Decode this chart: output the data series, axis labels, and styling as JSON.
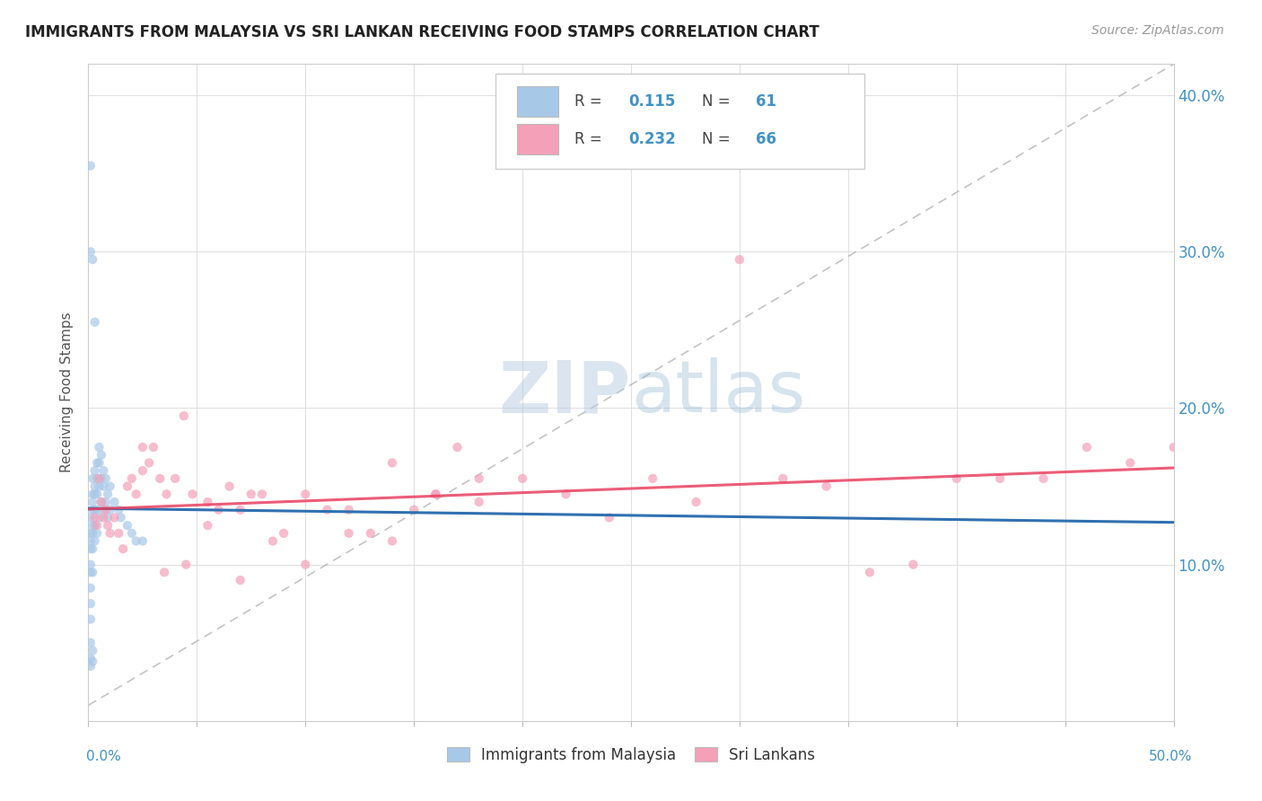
{
  "title": "IMMIGRANTS FROM MALAYSIA VS SRI LANKAN RECEIVING FOOD STAMPS CORRELATION CHART",
  "source": "Source: ZipAtlas.com",
  "ylabel": "Receiving Food Stamps",
  "xlim": [
    0.0,
    0.5
  ],
  "ylim": [
    0.0,
    0.42
  ],
  "ytick_vals": [
    0.1,
    0.2,
    0.3,
    0.4
  ],
  "ytick_labels": [
    "10.0%",
    "20.0%",
    "30.0%",
    "40.0%"
  ],
  "blue_color": "#a8c8e8",
  "pink_color": "#f4a0b8",
  "blue_line_color": "#3070b0",
  "pink_line_color": "#e8406080",
  "grid_color": "#e0e0e0",
  "watermark_color": "#c8d8e8",
  "malaysia_x": [
    0.001,
    0.001,
    0.001,
    0.001,
    0.001,
    0.001,
    0.001,
    0.001,
    0.001,
    0.001,
    0.002,
    0.002,
    0.002,
    0.002,
    0.002,
    0.002,
    0.002,
    0.002,
    0.003,
    0.003,
    0.003,
    0.003,
    0.003,
    0.003,
    0.004,
    0.004,
    0.004,
    0.004,
    0.004,
    0.005,
    0.005,
    0.005,
    0.005,
    0.006,
    0.006,
    0.006,
    0.007,
    0.007,
    0.007,
    0.008,
    0.008,
    0.009,
    0.009,
    0.01,
    0.01,
    0.012,
    0.014,
    0.015,
    0.018,
    0.02,
    0.022,
    0.025,
    0.001,
    0.002,
    0.003,
    0.001,
    0.002,
    0.001,
    0.002,
    0.001
  ],
  "malaysia_y": [
    0.355,
    0.13,
    0.12,
    0.115,
    0.11,
    0.1,
    0.095,
    0.085,
    0.075,
    0.065,
    0.155,
    0.145,
    0.14,
    0.135,
    0.125,
    0.12,
    0.11,
    0.095,
    0.16,
    0.15,
    0.145,
    0.135,
    0.125,
    0.115,
    0.165,
    0.155,
    0.145,
    0.135,
    0.12,
    0.175,
    0.165,
    0.15,
    0.13,
    0.17,
    0.155,
    0.14,
    0.16,
    0.15,
    0.135,
    0.155,
    0.14,
    0.145,
    0.13,
    0.15,
    0.135,
    0.14,
    0.135,
    0.13,
    0.125,
    0.12,
    0.115,
    0.115,
    0.3,
    0.295,
    0.255,
    0.05,
    0.045,
    0.04,
    0.038,
    0.035
  ],
  "srilanka_x": [
    0.003,
    0.004,
    0.005,
    0.006,
    0.007,
    0.008,
    0.009,
    0.01,
    0.012,
    0.014,
    0.016,
    0.018,
    0.02,
    0.022,
    0.025,
    0.028,
    0.03,
    0.033,
    0.036,
    0.04,
    0.044,
    0.048,
    0.055,
    0.06,
    0.065,
    0.07,
    0.075,
    0.08,
    0.09,
    0.1,
    0.11,
    0.12,
    0.13,
    0.14,
    0.15,
    0.16,
    0.17,
    0.18,
    0.2,
    0.22,
    0.24,
    0.26,
    0.28,
    0.3,
    0.32,
    0.34,
    0.36,
    0.38,
    0.4,
    0.42,
    0.44,
    0.46,
    0.48,
    0.5,
    0.025,
    0.035,
    0.045,
    0.055,
    0.07,
    0.085,
    0.1,
    0.12,
    0.14,
    0.16,
    0.18
  ],
  "srilanka_y": [
    0.13,
    0.125,
    0.155,
    0.14,
    0.13,
    0.135,
    0.125,
    0.12,
    0.13,
    0.12,
    0.11,
    0.15,
    0.155,
    0.145,
    0.175,
    0.165,
    0.175,
    0.155,
    0.145,
    0.155,
    0.195,
    0.145,
    0.14,
    0.135,
    0.15,
    0.135,
    0.145,
    0.145,
    0.12,
    0.145,
    0.135,
    0.135,
    0.12,
    0.165,
    0.135,
    0.145,
    0.175,
    0.155,
    0.155,
    0.145,
    0.13,
    0.155,
    0.14,
    0.295,
    0.155,
    0.15,
    0.095,
    0.1,
    0.155,
    0.155,
    0.155,
    0.175,
    0.165,
    0.175,
    0.16,
    0.095,
    0.1,
    0.125,
    0.09,
    0.115,
    0.1,
    0.12,
    0.115,
    0.145,
    0.14
  ]
}
